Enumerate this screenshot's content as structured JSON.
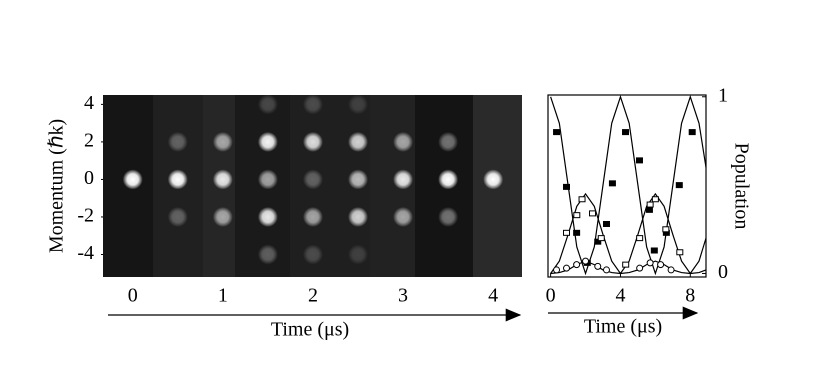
{
  "chart_data": [
    {
      "type": "image",
      "xlabel": "Time (μs)",
      "ylabel": "Momentum (ℏk)",
      "xlim": [
        -0.33,
        4.32
      ],
      "ylim": [
        -5.2,
        4.5
      ],
      "xticks": [
        0,
        1,
        2,
        3,
        4
      ],
      "yticks": [
        4,
        2,
        0,
        -2,
        -4
      ],
      "x": [
        0,
        0.5,
        0.5,
        0.5,
        1,
        1,
        1,
        1.5,
        1.5,
        1.5,
        1.5,
        1.5,
        2,
        2,
        2,
        2,
        2,
        2.5,
        2.5,
        2.5,
        2.5,
        2.5,
        3,
        3,
        3,
        3.5,
        3.5,
        3.5,
        4
      ],
      "y": [
        0,
        0,
        2,
        -2,
        0,
        2,
        -2,
        0,
        2,
        -2,
        4,
        -4,
        0,
        2,
        -2,
        4,
        -4,
        0,
        2,
        -2,
        4,
        -4,
        0,
        2,
        -2,
        0,
        2,
        -2,
        0
      ],
      "values": [
        1,
        1,
        0.3,
        0.3,
        0.9,
        0.6,
        0.6,
        0.6,
        0.95,
        0.9,
        0.2,
        0.3,
        0.3,
        0.85,
        0.6,
        0.2,
        0.2,
        0.7,
        0.8,
        0.8,
        0.15,
        0.15,
        0.9,
        0.6,
        0.6,
        1,
        0.4,
        0.4,
        1
      ]
    },
    {
      "type": "line",
      "xlabel": "Time (μs)",
      "ylabel": "Population",
      "xlim": [
        -0.15,
        8.9
      ],
      "ylim": [
        -0.02,
        1.01
      ],
      "xticks": [
        0,
        4,
        8
      ],
      "yticks": [
        1,
        0
      ],
      "color": "#000000",
      "series": [
        {
          "style": "line",
          "x": [
            0,
            0.5,
            1,
            1.5,
            2,
            2.5,
            3,
            3.5,
            4,
            4.5,
            5,
            5.5,
            6,
            6.5,
            7,
            7.5,
            8,
            8.5,
            8.9
          ],
          "values": [
            1,
            0.85,
            0.5,
            0.15,
            0,
            0.15,
            0.5,
            0.85,
            1,
            0.85,
            0.5,
            0.15,
            0,
            0.15,
            0.5,
            0.85,
            1,
            0.85,
            0.6
          ]
        },
        {
          "style": "line",
          "x": [
            0,
            0.5,
            1,
            1.5,
            2,
            2.5,
            3,
            3.5,
            4,
            4.5,
            5,
            5.5,
            6,
            6.5,
            7,
            7.5,
            8,
            8.5,
            8.9
          ],
          "values": [
            0,
            0.07,
            0.22,
            0.38,
            0.45,
            0.38,
            0.22,
            0.07,
            0,
            0.07,
            0.22,
            0.38,
            0.45,
            0.38,
            0.22,
            0.07,
            0,
            0.07,
            0.2
          ]
        },
        {
          "style": "line",
          "x": [
            0,
            0.5,
            1,
            1.5,
            2,
            2.5,
            3,
            3.5,
            4,
            4.5,
            5,
            5.5,
            6,
            6.5,
            7,
            7.5,
            8,
            8.5,
            8.9
          ],
          "values": [
            0,
            0.005,
            0.02,
            0.05,
            0.07,
            0.05,
            0.02,
            0.005,
            0,
            0.005,
            0.02,
            0.05,
            0.07,
            0.05,
            0.02,
            0.005,
            0,
            0.005,
            0.02
          ]
        },
        {
          "style": "filled-square",
          "x": [
            0.34,
            0.91,
            1.49,
            2.1,
            2.7,
            3.2,
            3.54,
            4.29,
            5.09,
            5.66,
            5.94,
            6.63,
            7.37,
            8.11
          ],
          "values": [
            0.8,
            0.49,
            0.23,
            0.06,
            0.18,
            0.28,
            0.51,
            0.8,
            0.64,
            0.36,
            0.13,
            0.23,
            0.5,
            0.8
          ]
        },
        {
          "style": "open-square",
          "x": [
            0.91,
            1.5,
            1.8,
            2.4,
            2.9,
            4.3,
            5.1,
            5.7,
            6.0,
            6.6,
            7.4
          ],
          "values": [
            0.23,
            0.33,
            0.42,
            0.34,
            0.2,
            0.05,
            0.2,
            0.39,
            0.42,
            0.25,
            0.12
          ]
        },
        {
          "style": "open-circle",
          "x": [
            0.34,
            0.91,
            1.49,
            2.0,
            2.7,
            3.2,
            5.1,
            5.7,
            6.3,
            6.9
          ],
          "values": [
            0.02,
            0.03,
            0.05,
            0.07,
            0.04,
            0.02,
            0.03,
            0.06,
            0.05,
            0.02
          ]
        }
      ]
    }
  ]
}
